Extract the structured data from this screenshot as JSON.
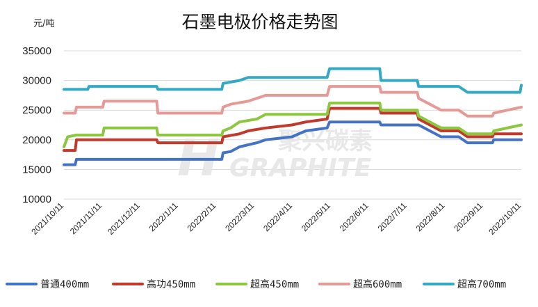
{
  "chart_data": {
    "type": "line",
    "title": "石墨电极价格走势图",
    "ylabel": "元/吨",
    "xlabel": "",
    "ylim": [
      10000,
      35000
    ],
    "yticks": [
      "35000",
      "30000",
      "25000",
      "20000",
      "15000",
      "10000"
    ],
    "x_ticks": [
      "2021/10/11",
      "2021/11/11",
      "2021/12/11",
      "2022/1/11",
      "2022/2/11",
      "2022/3/11",
      "2022/4/11",
      "2022/5/11",
      "2022/6/11",
      "2022/7/11",
      "2022/8/11",
      "2022/9/11",
      "2022/10/11"
    ],
    "grid": "horizontal",
    "legend_position": "bottom",
    "series": [
      {
        "name": "普通400mm",
        "color": "#4472C4",
        "points": [
          [
            "2021-10-11",
            15800
          ],
          [
            "2021-10-20",
            15800
          ],
          [
            "2021-10-21",
            16700
          ],
          [
            "2022-02-14",
            16700
          ],
          [
            "2022-02-15",
            17800
          ],
          [
            "2022-02-21",
            18000
          ],
          [
            "2022-02-28",
            18800
          ],
          [
            "2022-03-14",
            19500
          ],
          [
            "2022-03-21",
            20000
          ],
          [
            "2022-04-11",
            20500
          ],
          [
            "2022-04-22",
            21500
          ],
          [
            "2022-05-09",
            22000
          ],
          [
            "2022-05-11",
            23000
          ],
          [
            "2022-06-20",
            23000
          ],
          [
            "2022-06-21",
            22500
          ],
          [
            "2022-07-20",
            22500
          ],
          [
            "2022-07-21",
            22500
          ],
          [
            "2022-08-08",
            20500
          ],
          [
            "2022-08-22",
            20500
          ],
          [
            "2022-08-29",
            19500
          ],
          [
            "2022-09-18",
            19500
          ],
          [
            "2022-09-19",
            20000
          ],
          [
            "2022-10-11",
            20000
          ]
        ]
      },
      {
        "name": "高功450mm",
        "color": "#C0392B",
        "points": [
          [
            "2021-10-11",
            18200
          ],
          [
            "2021-10-20",
            18200
          ],
          [
            "2021-10-21",
            20000
          ],
          [
            "2021-12-24",
            20000
          ],
          [
            "2021-12-25",
            19500
          ],
          [
            "2022-02-14",
            19500
          ],
          [
            "2022-02-15",
            20500
          ],
          [
            "2022-02-28",
            21000
          ],
          [
            "2022-03-07",
            21500
          ],
          [
            "2022-03-21",
            22000
          ],
          [
            "2022-04-11",
            22500
          ],
          [
            "2022-04-22",
            23000
          ],
          [
            "2022-05-09",
            23500
          ],
          [
            "2022-05-11",
            25300
          ],
          [
            "2022-06-20",
            25300
          ],
          [
            "2022-06-21",
            24500
          ],
          [
            "2022-07-20",
            24500
          ],
          [
            "2022-07-21",
            23500
          ],
          [
            "2022-08-08",
            21500
          ],
          [
            "2022-08-22",
            21500
          ],
          [
            "2022-08-29",
            20500
          ],
          [
            "2022-09-18",
            20500
          ],
          [
            "2022-09-19",
            21000
          ],
          [
            "2022-10-11",
            21000
          ]
        ]
      },
      {
        "name": "超高450mm",
        "color": "#8DC63F",
        "points": [
          [
            "2021-10-11",
            18800
          ],
          [
            "2021-10-14",
            20500
          ],
          [
            "2021-10-21",
            20800
          ],
          [
            "2021-11-11",
            20800
          ],
          [
            "2021-11-12",
            22000
          ],
          [
            "2021-12-24",
            22000
          ],
          [
            "2021-12-25",
            20800
          ],
          [
            "2022-02-14",
            20800
          ],
          [
            "2022-02-15",
            21500
          ],
          [
            "2022-02-21",
            22000
          ],
          [
            "2022-02-28",
            23000
          ],
          [
            "2022-03-14",
            23500
          ],
          [
            "2022-03-21",
            24300
          ],
          [
            "2022-05-09",
            24300
          ],
          [
            "2022-05-11",
            26200
          ],
          [
            "2022-06-20",
            26200
          ],
          [
            "2022-06-21",
            25000
          ],
          [
            "2022-07-20",
            25000
          ],
          [
            "2022-07-21",
            24000
          ],
          [
            "2022-08-08",
            22000
          ],
          [
            "2022-08-22",
            22000
          ],
          [
            "2022-08-29",
            21000
          ],
          [
            "2022-09-18",
            21000
          ],
          [
            "2022-09-19",
            21500
          ],
          [
            "2022-10-11",
            22500
          ]
        ]
      },
      {
        "name": "超高600mm",
        "color": "#E69A97",
        "points": [
          [
            "2021-10-11",
            24500
          ],
          [
            "2021-10-20",
            24500
          ],
          [
            "2021-10-21",
            25500
          ],
          [
            "2021-11-11",
            25500
          ],
          [
            "2021-11-12",
            26500
          ],
          [
            "2021-12-24",
            26500
          ],
          [
            "2021-12-25",
            24500
          ],
          [
            "2022-02-14",
            24500
          ],
          [
            "2022-02-15",
            25500
          ],
          [
            "2022-02-21",
            26000
          ],
          [
            "2022-03-07",
            26500
          ],
          [
            "2022-03-21",
            27500
          ],
          [
            "2022-05-09",
            27500
          ],
          [
            "2022-05-11",
            29000
          ],
          [
            "2022-06-20",
            29000
          ],
          [
            "2022-06-21",
            28000
          ],
          [
            "2022-07-20",
            28000
          ],
          [
            "2022-07-21",
            27000
          ],
          [
            "2022-08-08",
            25000
          ],
          [
            "2022-08-22",
            25000
          ],
          [
            "2022-08-29",
            24000
          ],
          [
            "2022-09-18",
            24000
          ],
          [
            "2022-09-19",
            24500
          ],
          [
            "2022-10-11",
            25500
          ]
        ]
      },
      {
        "name": "超高700mm",
        "color": "#34A9C4",
        "points": [
          [
            "2021-10-11",
            28500
          ],
          [
            "2021-10-30",
            28500
          ],
          [
            "2021-10-31",
            29000
          ],
          [
            "2021-12-24",
            29000
          ],
          [
            "2021-12-25",
            28500
          ],
          [
            "2022-02-14",
            28500
          ],
          [
            "2022-02-15",
            29500
          ],
          [
            "2022-02-28",
            30000
          ],
          [
            "2022-03-07",
            30500
          ],
          [
            "2022-05-09",
            30500
          ],
          [
            "2022-05-11",
            32000
          ],
          [
            "2022-06-20",
            32000
          ],
          [
            "2022-06-21",
            30000
          ],
          [
            "2022-07-20",
            30000
          ],
          [
            "2022-07-21",
            29000
          ],
          [
            "2022-08-22",
            29000
          ],
          [
            "2022-08-29",
            28000
          ],
          [
            "2022-10-10",
            28000
          ],
          [
            "2022-10-11",
            29200
          ]
        ]
      }
    ]
  },
  "watermark": {
    "cn": "聚兴碳素",
    "en": "GRAPHITE"
  }
}
